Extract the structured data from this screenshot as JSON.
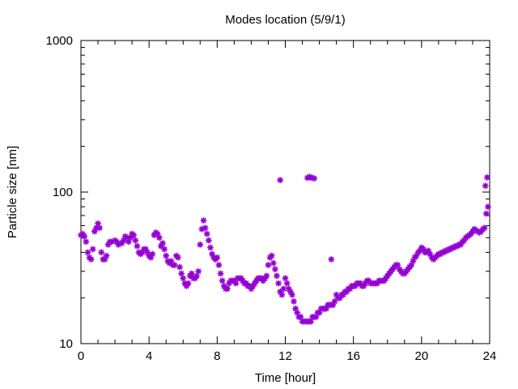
{
  "chart_data": {
    "type": "scatter",
    "title": "Modes location (5/9/1)",
    "xlabel": "Time [hour]",
    "ylabel": "Particle size [nm]",
    "xlim": [
      0,
      24
    ],
    "ylim": [
      10,
      1000
    ],
    "yscale": "log",
    "grid": false,
    "x_ticks": [
      0,
      4,
      8,
      12,
      16,
      20,
      24
    ],
    "x_tick_labels": [
      "0",
      "4",
      "8",
      "12",
      "16",
      "20",
      "24"
    ],
    "y_ticks": [
      10,
      100,
      1000
    ],
    "y_tick_labels": [
      "10",
      "100",
      "1000"
    ],
    "marker_color": "#9400D3",
    "marker": "asterisk",
    "points": [
      [
        0.0,
        52
      ],
      [
        0.1,
        53
      ],
      [
        0.2,
        51
      ],
      [
        0.3,
        47
      ],
      [
        0.4,
        40
      ],
      [
        0.5,
        37
      ],
      [
        0.6,
        36
      ],
      [
        0.7,
        42
      ],
      [
        0.8,
        55
      ],
      [
        0.9,
        58
      ],
      [
        1.0,
        62
      ],
      [
        1.1,
        58
      ],
      [
        1.2,
        40
      ],
      [
        1.3,
        36
      ],
      [
        1.4,
        36
      ],
      [
        1.5,
        38
      ],
      [
        1.6,
        45
      ],
      [
        1.7,
        47
      ],
      [
        1.8,
        47
      ],
      [
        2.0,
        48
      ],
      [
        2.1,
        47
      ],
      [
        2.2,
        45
      ],
      [
        2.4,
        46
      ],
      [
        2.5,
        48
      ],
      [
        2.6,
        51
      ],
      [
        2.7,
        50
      ],
      [
        2.8,
        47
      ],
      [
        2.9,
        50
      ],
      [
        3.0,
        53
      ],
      [
        3.1,
        52
      ],
      [
        3.2,
        48
      ],
      [
        3.3,
        44
      ],
      [
        3.4,
        40
      ],
      [
        3.5,
        39
      ],
      [
        3.6,
        40
      ],
      [
        3.7,
        42
      ],
      [
        3.8,
        42
      ],
      [
        3.9,
        40
      ],
      [
        4.0,
        38
      ],
      [
        4.1,
        37
      ],
      [
        4.2,
        39
      ],
      [
        4.3,
        52
      ],
      [
        4.4,
        54
      ],
      [
        4.5,
        53
      ],
      [
        4.6,
        50
      ],
      [
        4.7,
        44
      ],
      [
        4.8,
        46
      ],
      [
        4.9,
        42
      ],
      [
        5.0,
        38
      ],
      [
        5.1,
        35
      ],
      [
        5.2,
        34
      ],
      [
        5.3,
        35
      ],
      [
        5.4,
        33
      ],
      [
        5.5,
        33
      ],
      [
        5.6,
        38
      ],
      [
        5.7,
        37
      ],
      [
        5.8,
        32
      ],
      [
        5.9,
        29
      ],
      [
        6.0,
        27
      ],
      [
        6.1,
        25
      ],
      [
        6.2,
        24
      ],
      [
        6.3,
        25
      ],
      [
        6.4,
        28
      ],
      [
        6.5,
        29
      ],
      [
        6.6,
        27
      ],
      [
        6.7,
        27
      ],
      [
        6.8,
        28
      ],
      [
        6.9,
        30
      ],
      [
        7.0,
        45
      ],
      [
        7.1,
        57
      ],
      [
        7.2,
        65
      ],
      [
        7.3,
        58
      ],
      [
        7.4,
        53
      ],
      [
        7.5,
        48
      ],
      [
        7.6,
        43
      ],
      [
        7.7,
        39
      ],
      [
        7.8,
        37
      ],
      [
        7.9,
        36
      ],
      [
        8.0,
        37
      ],
      [
        8.1,
        33
      ],
      [
        8.2,
        29
      ],
      [
        8.3,
        26
      ],
      [
        8.4,
        24
      ],
      [
        8.5,
        23
      ],
      [
        8.6,
        23
      ],
      [
        8.7,
        25
      ],
      [
        8.8,
        26
      ],
      [
        8.9,
        26
      ],
      [
        9.0,
        26
      ],
      [
        9.1,
        25
      ],
      [
        9.2,
        27
      ],
      [
        9.3,
        27
      ],
      [
        9.4,
        27
      ],
      [
        9.5,
        26
      ],
      [
        9.6,
        25
      ],
      [
        9.7,
        25
      ],
      [
        9.8,
        24
      ],
      [
        9.9,
        24
      ],
      [
        10.0,
        23
      ],
      [
        10.1,
        24
      ],
      [
        10.2,
        25
      ],
      [
        10.3,
        26
      ],
      [
        10.4,
        27
      ],
      [
        10.5,
        27
      ],
      [
        10.6,
        27
      ],
      [
        10.7,
        26
      ],
      [
        10.8,
        27
      ],
      [
        10.9,
        28
      ],
      [
        11.0,
        33
      ],
      [
        11.1,
        37
      ],
      [
        11.2,
        38
      ],
      [
        11.3,
        34
      ],
      [
        11.4,
        31
      ],
      [
        11.5,
        28
      ],
      [
        11.6,
        25
      ],
      [
        11.7,
        22
      ],
      [
        11.8,
        21
      ],
      [
        11.9,
        23
      ],
      [
        12.0,
        27
      ],
      [
        12.1,
        25
      ],
      [
        12.2,
        23
      ],
      [
        12.3,
        22
      ],
      [
        12.4,
        21
      ],
      [
        12.5,
        19
      ],
      [
        12.6,
        17
      ],
      [
        12.7,
        16
      ],
      [
        12.8,
        15
      ],
      [
        12.9,
        15
      ],
      [
        13.0,
        14
      ],
      [
        13.1,
        14
      ],
      [
        13.2,
        14
      ],
      [
        13.3,
        14
      ],
      [
        13.4,
        14
      ],
      [
        13.5,
        14
      ],
      [
        13.6,
        15
      ],
      [
        13.7,
        15
      ],
      [
        13.8,
        15
      ],
      [
        13.9,
        16
      ],
      [
        14.0,
        16
      ],
      [
        14.1,
        17
      ],
      [
        14.2,
        17
      ],
      [
        14.3,
        17
      ],
      [
        14.4,
        17
      ],
      [
        14.5,
        18
      ],
      [
        14.6,
        18
      ],
      [
        14.7,
        18
      ],
      [
        14.8,
        18
      ],
      [
        14.9,
        19
      ],
      [
        15.0,
        21
      ],
      [
        15.1,
        20
      ],
      [
        15.2,
        20
      ],
      [
        15.3,
        21
      ],
      [
        15.4,
        21
      ],
      [
        15.5,
        22
      ],
      [
        15.6,
        22
      ],
      [
        15.7,
        23
      ],
      [
        15.8,
        23
      ],
      [
        15.9,
        24
      ],
      [
        16.0,
        24
      ],
      [
        16.1,
        24
      ],
      [
        16.2,
        25
      ],
      [
        16.3,
        25
      ],
      [
        16.4,
        25
      ],
      [
        16.5,
        24
      ],
      [
        16.6,
        24
      ],
      [
        16.7,
        25
      ],
      [
        16.8,
        26
      ],
      [
        16.9,
        26
      ],
      [
        17.0,
        25
      ],
      [
        17.1,
        25
      ],
      [
        17.2,
        25
      ],
      [
        17.3,
        25
      ],
      [
        17.4,
        25
      ],
      [
        17.5,
        26
      ],
      [
        17.6,
        26
      ],
      [
        17.7,
        26
      ],
      [
        17.8,
        26
      ],
      [
        17.9,
        27
      ],
      [
        18.0,
        28
      ],
      [
        18.1,
        29
      ],
      [
        18.2,
        30
      ],
      [
        18.3,
        31
      ],
      [
        18.4,
        32
      ],
      [
        18.5,
        33
      ],
      [
        18.6,
        33
      ],
      [
        18.7,
        31
      ],
      [
        18.8,
        30
      ],
      [
        18.9,
        29
      ],
      [
        19.0,
        29
      ],
      [
        19.1,
        30
      ],
      [
        19.2,
        31
      ],
      [
        19.3,
        32
      ],
      [
        19.4,
        33
      ],
      [
        19.5,
        35
      ],
      [
        19.6,
        37
      ],
      [
        19.7,
        38
      ],
      [
        19.8,
        40
      ],
      [
        19.9,
        41
      ],
      [
        20.0,
        43
      ],
      [
        20.1,
        42
      ],
      [
        20.2,
        40
      ],
      [
        20.3,
        40
      ],
      [
        20.4,
        41
      ],
      [
        20.5,
        39
      ],
      [
        20.6,
        37
      ],
      [
        20.7,
        36
      ],
      [
        20.8,
        37
      ],
      [
        20.9,
        38
      ],
      [
        21.0,
        39
      ],
      [
        21.1,
        39
      ],
      [
        21.2,
        40
      ],
      [
        21.3,
        40
      ],
      [
        21.4,
        41
      ],
      [
        21.5,
        41
      ],
      [
        21.6,
        42
      ],
      [
        21.7,
        42
      ],
      [
        21.8,
        43
      ],
      [
        21.9,
        43
      ],
      [
        22.0,
        44
      ],
      [
        22.1,
        44
      ],
      [
        22.2,
        45
      ],
      [
        22.3,
        45
      ],
      [
        22.4,
        47
      ],
      [
        22.5,
        48
      ],
      [
        22.6,
        50
      ],
      [
        22.7,
        51
      ],
      [
        22.8,
        52
      ],
      [
        22.9,
        53
      ],
      [
        23.0,
        55
      ],
      [
        23.1,
        57
      ],
      [
        23.2,
        56
      ],
      [
        23.3,
        55
      ],
      [
        23.4,
        54
      ],
      [
        23.5,
        55
      ],
      [
        23.6,
        57
      ],
      [
        23.7,
        58
      ],
      [
        23.8,
        72
      ],
      [
        23.9,
        80
      ],
      [
        11.7,
        120
      ],
      [
        13.3,
        124
      ],
      [
        13.4,
        126
      ],
      [
        13.5,
        125
      ],
      [
        13.6,
        124
      ],
      [
        13.7,
        123
      ],
      [
        14.7,
        36
      ],
      [
        23.75,
        110
      ],
      [
        23.85,
        125
      ]
    ]
  }
}
